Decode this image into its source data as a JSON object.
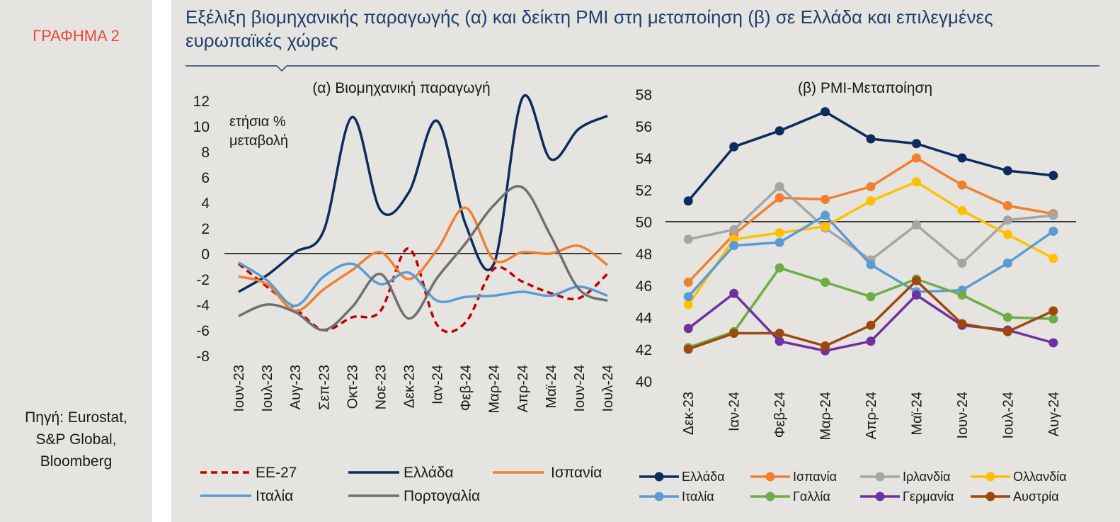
{
  "label": "ΓΡΑΦΗΜΑ 2",
  "title_lines": [
    "Εξέλιξη βιομηχανικής παραγωγής (α) και δείκτη  PMI στη μεταποίηση (β) σε Ελλάδα και επιλεγμένες",
    "ευρωπαϊκές χώρες"
  ],
  "source_lines": [
    "Πηγή: Eurostat,",
    "S&P Global,",
    "Bloomberg"
  ],
  "chart_data": [
    {
      "type": "line",
      "title": "(α) Βιομηχανική παραγωγή",
      "ylabel_lines": [
        "ετήσια %",
        "μεταβολή"
      ],
      "ylim": [
        -8,
        12
      ],
      "ytick_step": 2,
      "categories": [
        "Ιουν-23",
        "Ιουλ-23",
        "Αυγ-23",
        "Σεπ-23",
        "Οκτ-23",
        "Νοε-23",
        "Δεκ-23",
        "Ιαν-24",
        "Φεβ-24",
        "Μαρ-24",
        "Απρ-24",
        "Μαϊ-24",
        "Ιουν-24",
        "Ιουλ-24"
      ],
      "series": [
        {
          "name": "ΕΕ-27",
          "color": "#c00000",
          "dashed": true,
          "values": [
            -0.8,
            -2.6,
            -4.3,
            -6.0,
            -5.0,
            -4.5,
            0.4,
            -5.6,
            -5.4,
            -1.2,
            -2.2,
            -3.1,
            -3.5,
            -1.6
          ]
        },
        {
          "name": "Ελλάδα",
          "color": "#0d2b5e",
          "dashed": false,
          "values": [
            -3.0,
            -1.7,
            0.1,
            1.8,
            10.7,
            3.4,
            4.8,
            10.4,
            2.3,
            -0.8,
            12.2,
            7.4,
            9.8,
            10.8
          ]
        },
        {
          "name": "Ισπανία",
          "color": "#f08030",
          "dashed": false,
          "values": [
            -1.8,
            -2.4,
            -4.5,
            -2.8,
            -1.3,
            0.1,
            -2.0,
            0.3,
            3.6,
            -0.5,
            0.1,
            0.0,
            0.6,
            -0.9
          ]
        },
        {
          "name": "Ιταλία",
          "color": "#5b9bd5",
          "dashed": false,
          "values": [
            -0.7,
            -2.1,
            -4.1,
            -1.8,
            -0.8,
            -2.4,
            -1.5,
            -3.7,
            -3.4,
            -3.3,
            -3.0,
            -3.3,
            -2.6,
            -3.3
          ]
        },
        {
          "name": "Πορτογαλία",
          "color": "#707070",
          "dashed": false,
          "values": [
            -4.9,
            -4.0,
            -4.6,
            -6.0,
            -4.2,
            -1.6,
            -5.1,
            -1.9,
            0.8,
            3.8,
            5.2,
            1.4,
            -2.8,
            -3.7
          ]
        }
      ],
      "legend": [
        "ΕΕ-27",
        "Ελλάδα",
        "Ισπανία",
        "Ιταλία",
        "Πορτογαλία"
      ]
    },
    {
      "type": "line",
      "title": "(β) PMI-Μεταποίηση",
      "ylim": [
        40,
        58
      ],
      "ytick_step": 2,
      "reference_line": 50,
      "categories": [
        "Δεκ-23",
        "Ιαν-24",
        "Φεβ-24",
        "Μαρ-24",
        "Απρ-24",
        "Μαϊ-24",
        "Ιουν-24",
        "Ιουλ-24",
        "Αυγ-24"
      ],
      "series": [
        {
          "name": "Ελλάδα",
          "color": "#0d2b5e",
          "values": [
            51.3,
            54.7,
            55.7,
            56.9,
            55.2,
            54.9,
            54.0,
            53.2,
            52.9
          ]
        },
        {
          "name": "Ισπανία",
          "color": "#f08030",
          "values": [
            46.2,
            49.2,
            51.5,
            51.4,
            52.2,
            54.0,
            52.3,
            51.0,
            50.5
          ]
        },
        {
          "name": "Ιρλανδία",
          "color": "#a5a5a5",
          "values": [
            48.9,
            49.5,
            52.2,
            49.6,
            47.6,
            49.8,
            47.4,
            50.1,
            50.4
          ]
        },
        {
          "name": "Ολλανδία",
          "color": "#ffc000",
          "values": [
            44.8,
            48.9,
            49.3,
            49.7,
            51.3,
            52.5,
            50.7,
            49.2,
            47.7
          ]
        },
        {
          "name": "Ιταλία",
          "color": "#5b9bd5",
          "values": [
            45.3,
            48.5,
            48.7,
            50.4,
            47.3,
            45.6,
            45.7,
            47.4,
            49.4
          ]
        },
        {
          "name": "Γαλλία",
          "color": "#70ad47",
          "values": [
            42.1,
            43.1,
            47.1,
            46.2,
            45.3,
            46.4,
            45.4,
            44.0,
            43.9
          ]
        },
        {
          "name": "Γερμανία",
          "color": "#7030a0",
          "values": [
            43.3,
            45.5,
            42.5,
            41.9,
            42.5,
            45.4,
            43.5,
            43.2,
            42.4
          ]
        },
        {
          "name": "Αυστρία",
          "color": "#9e480e",
          "values": [
            42.0,
            43.0,
            43.0,
            42.2,
            43.5,
            46.3,
            43.6,
            43.1,
            44.4
          ]
        }
      ],
      "legend": [
        "Ελλάδα",
        "Ισπανία",
        "Ιρλανδία",
        "Ολλανδία",
        "Ιταλία",
        "Γαλλία",
        "Γερμανία",
        "Αυστρία"
      ]
    }
  ]
}
